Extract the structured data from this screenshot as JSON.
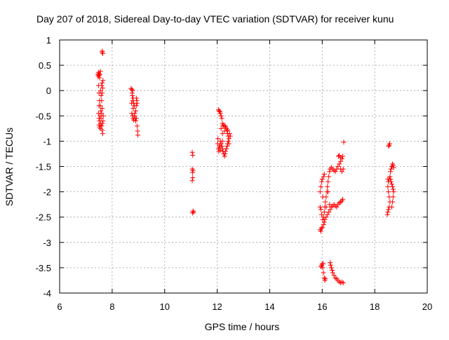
{
  "chart_data": {
    "type": "scatter",
    "title": "Day 207 of 2018, Sidereal Day-to-day VTEC variation (SDTVAR) for receiver kunu",
    "xlabel": "GPS time / hours",
    "ylabel": "SDTVAR / TECUs",
    "xlim": [
      6,
      20
    ],
    "ylim": [
      -4,
      1
    ],
    "xticks": [
      "6",
      "8",
      "10",
      "12",
      "14",
      "16",
      "18",
      "20"
    ],
    "yticks": [
      "1",
      "0.5",
      "0",
      "-0.5",
      "-1",
      "-1.5",
      "-2",
      "-2.5",
      "-3",
      "-3.5",
      "-4"
    ],
    "grid": true,
    "marker": "+",
    "marker_color": "#ff0000",
    "series": [
      {
        "points": [
          [
            7.48,
            0.36
          ],
          [
            7.5,
            0.3
          ],
          [
            7.52,
            0.25
          ],
          [
            7.53,
            0.32
          ],
          [
            7.55,
            0.38
          ],
          [
            7.5,
            0.33
          ],
          [
            7.48,
            0.1
          ],
          [
            7.5,
            -0.05
          ],
          [
            7.52,
            -0.2
          ],
          [
            7.5,
            -0.3
          ],
          [
            7.48,
            -0.45
          ],
          [
            7.5,
            -0.55
          ],
          [
            7.52,
            -0.6
          ],
          [
            7.54,
            -0.5
          ],
          [
            7.56,
            -0.65
          ],
          [
            7.5,
            -0.68
          ],
          [
            7.52,
            -0.72
          ],
          [
            7.55,
            -0.75
          ],
          [
            7.58,
            -0.55
          ],
          [
            7.6,
            -0.45
          ],
          [
            7.62,
            -0.35
          ],
          [
            7.6,
            -0.2
          ],
          [
            7.62,
            -0.05
          ],
          [
            7.64,
            0.05
          ],
          [
            7.62,
            0.15
          ],
          [
            7.65,
            0.2
          ],
          [
            7.6,
            -0.7
          ],
          [
            7.62,
            -0.78
          ],
          [
            7.64,
            -0.85
          ],
          [
            7.65,
            -0.6
          ],
          [
            7.58,
            -0.1
          ],
          [
            7.56,
            0.0
          ],
          [
            7.62,
            0.76
          ],
          [
            7.64,
            0.73
          ],
          [
            7.62,
            0.78
          ],
          [
            7.55,
            -0.3
          ],
          [
            7.57,
            -0.4
          ],
          [
            7.45,
            0.32
          ],
          [
            7.47,
            0.28
          ],
          [
            7.6,
            0.1
          ],
          [
            7.66,
            -0.5
          ],
          [
            7.63,
            -0.65
          ]
        ]
      },
      {
        "points": [
          [
            8.72,
            0.04
          ],
          [
            8.75,
            0.02
          ],
          [
            8.78,
            0.0
          ],
          [
            8.76,
            -0.05
          ],
          [
            8.8,
            -0.15
          ],
          [
            8.78,
            -0.2
          ],
          [
            8.82,
            -0.25
          ],
          [
            8.85,
            -0.3
          ],
          [
            8.8,
            -0.35
          ],
          [
            8.75,
            -0.45
          ],
          [
            8.78,
            -0.5
          ],
          [
            8.8,
            -0.55
          ],
          [
            8.82,
            -0.58
          ],
          [
            8.85,
            -0.5
          ],
          [
            8.88,
            -0.55
          ],
          [
            8.9,
            -0.6
          ],
          [
            8.92,
            -0.55
          ],
          [
            8.9,
            -0.4
          ],
          [
            8.92,
            -0.3
          ],
          [
            8.95,
            -0.25
          ],
          [
            8.92,
            -0.15
          ],
          [
            8.95,
            -0.7
          ],
          [
            8.97,
            -0.8
          ],
          [
            8.98,
            -0.88
          ],
          [
            8.94,
            -0.2
          ],
          [
            8.86,
            -0.45
          ],
          [
            8.77,
            -0.1
          ],
          [
            8.74,
            -0.25
          ]
        ]
      },
      {
        "points": [
          [
            11.05,
            -1.22
          ],
          [
            11.07,
            -1.28
          ],
          [
            11.05,
            -1.55
          ],
          [
            11.08,
            -1.58
          ],
          [
            11.06,
            -1.62
          ],
          [
            11.07,
            -1.72
          ],
          [
            11.05,
            -1.78
          ],
          [
            11.08,
            -2.38
          ],
          [
            11.1,
            -2.4
          ],
          [
            11.06,
            -2.42
          ]
        ]
      },
      {
        "points": [
          [
            12.05,
            -0.38
          ],
          [
            12.08,
            -0.4
          ],
          [
            12.1,
            -0.42
          ],
          [
            12.12,
            -0.45
          ],
          [
            12.15,
            -0.5
          ],
          [
            12.18,
            -0.55
          ],
          [
            12.2,
            -0.65
          ],
          [
            12.22,
            -0.7
          ],
          [
            12.25,
            -0.68
          ],
          [
            12.3,
            -0.7
          ],
          [
            12.35,
            -0.75
          ],
          [
            12.38,
            -0.8
          ],
          [
            12.4,
            -0.85
          ],
          [
            12.42,
            -0.9
          ],
          [
            12.45,
            -0.95
          ],
          [
            12.42,
            -1.0
          ],
          [
            12.4,
            -1.05
          ],
          [
            12.38,
            -1.1
          ],
          [
            12.35,
            -1.15
          ],
          [
            12.32,
            -1.2
          ],
          [
            12.3,
            -1.25
          ],
          [
            12.28,
            -1.3
          ],
          [
            12.25,
            -1.25
          ],
          [
            12.22,
            -1.2
          ],
          [
            12.2,
            -1.15
          ],
          [
            12.18,
            -1.1
          ],
          [
            12.15,
            -1.05
          ],
          [
            12.12,
            -1.0
          ],
          [
            12.1,
            -1.08
          ],
          [
            12.08,
            -1.12
          ],
          [
            12.05,
            -1.15
          ],
          [
            12.03,
            -0.95
          ],
          [
            12.02,
            -1.05
          ],
          [
            12.06,
            -1.2
          ],
          [
            12.12,
            -1.18
          ],
          [
            12.2,
            -1.0
          ],
          [
            12.28,
            -0.8
          ],
          [
            12.32,
            -0.72
          ],
          [
            12.4,
            -0.78
          ],
          [
            12.48,
            -0.85
          ],
          [
            12.5,
            -0.9
          ],
          [
            12.45,
            -1.05
          ],
          [
            12.15,
            -0.75
          ],
          [
            12.2,
            -0.85
          ]
        ]
      },
      {
        "points": [
          [
            15.92,
            -2.75
          ],
          [
            15.95,
            -2.78
          ],
          [
            15.98,
            -2.72
          ],
          [
            16.0,
            -2.7
          ],
          [
            16.05,
            -2.65
          ],
          [
            16.08,
            -2.6
          ],
          [
            16.1,
            -2.55
          ],
          [
            16.15,
            -2.5
          ],
          [
            16.2,
            -2.45
          ],
          [
            16.25,
            -2.4
          ],
          [
            16.3,
            -2.35
          ],
          [
            16.35,
            -2.3
          ],
          [
            16.4,
            -2.28
          ],
          [
            16.45,
            -2.25
          ],
          [
            16.5,
            -2.28
          ],
          [
            16.55,
            -2.3
          ],
          [
            16.6,
            -2.25
          ],
          [
            16.65,
            -2.22
          ],
          [
            16.7,
            -2.2
          ],
          [
            16.75,
            -2.18
          ],
          [
            16.78,
            -2.15
          ],
          [
            15.92,
            -2.3
          ],
          [
            15.95,
            -2.35
          ],
          [
            15.98,
            -2.45
          ],
          [
            16.02,
            -2.55
          ],
          [
            16.05,
            -2.5
          ],
          [
            16.08,
            -2.4
          ],
          [
            16.1,
            -2.3
          ],
          [
            16.12,
            -2.2
          ],
          [
            16.15,
            -2.1
          ],
          [
            16.18,
            -2.0
          ],
          [
            16.2,
            -1.9
          ],
          [
            16.22,
            -1.8
          ],
          [
            16.25,
            -1.7
          ],
          [
            16.28,
            -1.6
          ],
          [
            16.3,
            -1.55
          ],
          [
            16.35,
            -1.52
          ],
          [
            16.4,
            -1.55
          ],
          [
            16.45,
            -1.58
          ],
          [
            16.5,
            -1.6
          ],
          [
            16.55,
            -1.55
          ],
          [
            16.6,
            -1.5
          ],
          [
            16.65,
            -1.45
          ],
          [
            16.7,
            -1.4
          ],
          [
            16.75,
            -1.35
          ],
          [
            16.78,
            -1.3
          ],
          [
            16.8,
            -1.55
          ],
          [
            16.75,
            -1.6
          ],
          [
            16.7,
            -1.55
          ],
          [
            16.62,
            -1.3
          ],
          [
            16.65,
            -1.28
          ],
          [
            16.7,
            -1.32
          ],
          [
            16.82,
            -1.02
          ],
          [
            15.92,
            -2.0
          ],
          [
            15.95,
            -1.9
          ],
          [
            15.98,
            -1.8
          ],
          [
            16.0,
            -1.75
          ],
          [
            16.05,
            -1.7
          ],
          [
            16.08,
            -1.65
          ],
          [
            16.02,
            -2.1
          ],
          [
            15.98,
            -3.45
          ],
          [
            16.0,
            -3.42
          ],
          [
            16.02,
            -3.5
          ],
          [
            16.05,
            -3.6
          ],
          [
            16.08,
            -3.7
          ],
          [
            16.1,
            -3.75
          ],
          [
            16.12,
            -3.72
          ],
          [
            16.3,
            -3.4
          ],
          [
            16.32,
            -3.45
          ],
          [
            16.35,
            -3.5
          ],
          [
            16.38,
            -3.55
          ],
          [
            16.4,
            -3.6
          ],
          [
            16.45,
            -3.65
          ],
          [
            16.5,
            -3.7
          ],
          [
            16.55,
            -3.72
          ],
          [
            16.6,
            -3.75
          ],
          [
            16.65,
            -3.78
          ],
          [
            16.7,
            -3.8
          ],
          [
            16.75,
            -3.78
          ],
          [
            16.8,
            -3.8
          ],
          [
            15.95,
            -3.48
          ],
          [
            16.04,
            -3.42
          ],
          [
            16.28,
            -2.25
          ],
          [
            16.22,
            -2.0
          ],
          [
            16.15,
            -2.3
          ]
        ]
      },
      {
        "points": [
          [
            18.48,
            -2.45
          ],
          [
            18.5,
            -2.4
          ],
          [
            18.52,
            -2.35
          ],
          [
            18.55,
            -2.3
          ],
          [
            18.58,
            -2.2
          ],
          [
            18.55,
            -2.1
          ],
          [
            18.52,
            -2.0
          ],
          [
            18.5,
            -1.9
          ],
          [
            18.52,
            -1.8
          ],
          [
            18.55,
            -1.75
          ],
          [
            18.58,
            -1.7
          ],
          [
            18.6,
            -1.75
          ],
          [
            18.62,
            -1.8
          ],
          [
            18.65,
            -1.85
          ],
          [
            18.68,
            -1.9
          ],
          [
            18.7,
            -1.95
          ],
          [
            18.72,
            -2.0
          ],
          [
            18.7,
            -2.1
          ],
          [
            18.68,
            -2.2
          ],
          [
            18.65,
            -2.3
          ],
          [
            18.62,
            -1.55
          ],
          [
            18.65,
            -1.5
          ],
          [
            18.68,
            -1.45
          ],
          [
            18.7,
            -1.48
          ],
          [
            18.72,
            -1.52
          ],
          [
            18.55,
            -1.08
          ],
          [
            18.57,
            -1.05
          ],
          [
            18.53,
            -1.1
          ],
          [
            18.5,
            -1.75
          ],
          [
            18.6,
            -1.6
          ]
        ]
      }
    ]
  }
}
